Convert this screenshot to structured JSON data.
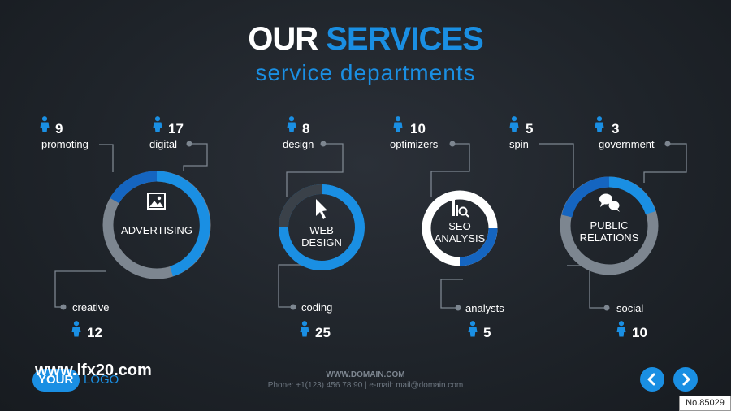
{
  "title": {
    "white": "OUR",
    "blue": "SERVICES"
  },
  "subtitle": "service departments",
  "colors": {
    "accent": "#1a8fe3",
    "dark_blue": "#1565c0",
    "gray_ring": "#7d8690",
    "background": "#1f242a"
  },
  "services": [
    {
      "name": "ADVERTISING",
      "icon": "picture-icon",
      "departments": [
        {
          "label": "promoting",
          "count": "9"
        },
        {
          "label": "digital",
          "count": "17"
        },
        {
          "label": "creative",
          "count": "12"
        }
      ]
    },
    {
      "name_line1": "WEB",
      "name_line2": "DESIGN",
      "icon": "cursor-icon",
      "departments": [
        {
          "label": "design",
          "count": "8"
        },
        {
          "label": "coding",
          "count": "25"
        }
      ]
    },
    {
      "name_line1": "SEO",
      "name_line2": "ANALYSIS",
      "icon": "magnifier-chart-icon",
      "departments": [
        {
          "label": "optimizers",
          "count": "10"
        },
        {
          "label": "analysts",
          "count": "5"
        }
      ]
    },
    {
      "name_line1": "PUBLIC",
      "name_line2": "RELATIONS",
      "icon": "chat-bubbles-icon",
      "departments": [
        {
          "label": "spin",
          "count": "5"
        },
        {
          "label": "government",
          "count": "3"
        },
        {
          "label": "social",
          "count": "10"
        }
      ]
    }
  ],
  "person_icon": "person-icon",
  "website": "www.lfx20.com",
  "logo": {
    "part1": "YOUR",
    "part2": "LOGO"
  },
  "footer": {
    "domain": "WWW.DOMAIN.COM",
    "contact": "Phone: +1(123) 456 78 90 | e-mail: mail@domain.com"
  },
  "nav": {
    "prev_icon": "chevron-left-icon",
    "next_icon": "chevron-right-icon"
  },
  "stamp": "No.85029"
}
